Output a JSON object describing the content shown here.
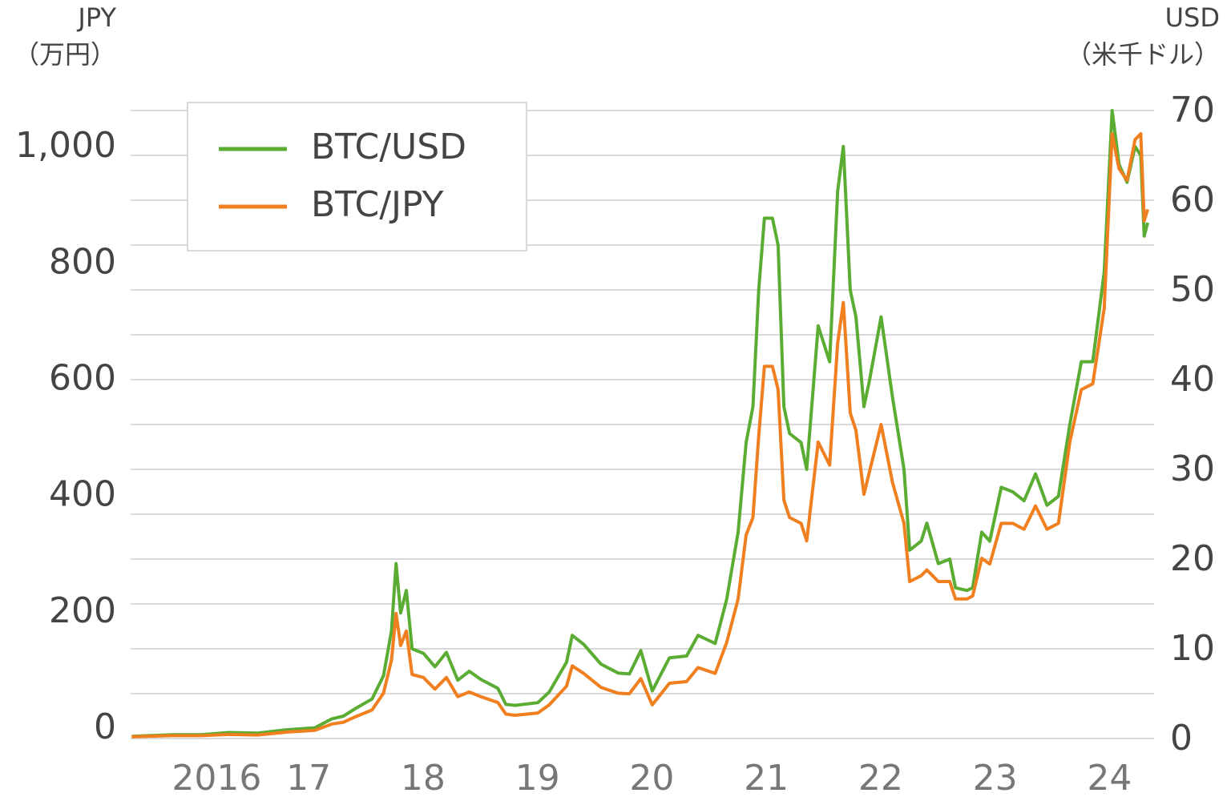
{
  "chart_data": {
    "type": "line",
    "y_label": [
      "JPY",
      "（万円）"
    ],
    "y2_label": [
      "USD",
      "（米千ドル）"
    ],
    "x": [
      2015.65,
      2016.0,
      2016.25,
      2016.5,
      2016.75,
      2017.0,
      2017.25,
      2017.4,
      2017.5,
      2017.6,
      2017.75,
      2017.85,
      2017.92,
      2017.96,
      2018.0,
      2018.05,
      2018.1,
      2018.2,
      2018.3,
      2018.4,
      2018.5,
      2018.6,
      2018.7,
      2018.85,
      2018.92,
      2019.0,
      2019.2,
      2019.3,
      2019.45,
      2019.5,
      2019.6,
      2019.75,
      2019.9,
      2020.0,
      2020.1,
      2020.2,
      2020.35,
      2020.5,
      2020.6,
      2020.75,
      2020.85,
      2020.95,
      2021.02,
      2021.08,
      2021.13,
      2021.18,
      2021.25,
      2021.3,
      2021.35,
      2021.4,
      2021.5,
      2021.55,
      2021.65,
      2021.75,
      2021.82,
      2021.87,
      2021.93,
      2021.98,
      2022.05,
      2022.1,
      2022.2,
      2022.3,
      2022.4,
      2022.45,
      2022.55,
      2022.6,
      2022.7,
      2022.8,
      2022.85,
      2022.95,
      2023.0,
      2023.08,
      2023.15,
      2023.25,
      2023.35,
      2023.45,
      2023.55,
      2023.65,
      2023.75,
      2023.85,
      2023.95,
      2024.05,
      2024.15,
      2024.22,
      2024.28,
      2024.35,
      2024.42,
      2024.47,
      2024.5,
      2024.53
    ],
    "series": [
      {
        "name": "BTC/USD",
        "color": "#5aac33",
        "axis": "y2",
        "values": [
          0.25,
          0.43,
          0.42,
          0.67,
          0.61,
          0.97,
          1.2,
          2.2,
          2.5,
          3.3,
          4.4,
          7.0,
          12,
          19.5,
          14,
          16.5,
          10,
          9.5,
          8,
          9.6,
          6.5,
          7.5,
          6.6,
          5.6,
          3.8,
          3.7,
          4.0,
          5.2,
          8.5,
          11.5,
          10.5,
          8.3,
          7.3,
          7.2,
          9.8,
          5.3,
          9.0,
          9.2,
          11.5,
          10.6,
          15.5,
          23,
          33,
          37,
          50,
          58,
          58,
          55,
          37,
          34,
          33,
          30,
          46,
          42,
          61,
          66,
          50,
          47,
          37,
          40,
          47,
          38,
          30,
          21,
          22,
          24,
          19.5,
          20,
          16.8,
          16.5,
          16.8,
          23,
          22,
          28,
          27.5,
          26.5,
          29.5,
          26,
          27,
          35,
          42,
          42,
          52,
          70,
          64,
          62,
          66,
          65,
          56,
          57.5
        ]
      },
      {
        "name": "BTC/JPY",
        "color": "#f07f1f",
        "axis": "y",
        "values": [
          3,
          5,
          5,
          7,
          6,
          11,
          14,
          25,
          28,
          37,
          49,
          78,
          135,
          215,
          160,
          185,
          110,
          105,
          85,
          105,
          72,
          80,
          72,
          62,
          42,
          40,
          44,
          58,
          90,
          125,
          112,
          88,
          78,
          77,
          103,
          58,
          95,
          98,
          122,
          112,
          165,
          240,
          350,
          380,
          520,
          640,
          640,
          600,
          410,
          380,
          370,
          340,
          510,
          470,
          680,
          750,
          560,
          530,
          420,
          460,
          540,
          440,
          370,
          270,
          280,
          290,
          270,
          270,
          240,
          240,
          245,
          310,
          300,
          370,
          370,
          360,
          400,
          360,
          370,
          510,
          600,
          610,
          740,
          1040,
          980,
          960,
          1030,
          1040,
          890,
          910
        ]
      }
    ],
    "xlim": [
      2015.64,
      2024.53
    ],
    "xticks": [
      {
        "value": 2016,
        "label": "2016"
      },
      {
        "value": 2017,
        "label": "17"
      },
      {
        "value": 2018,
        "label": "18"
      },
      {
        "value": 2019,
        "label": "19"
      },
      {
        "value": 2020,
        "label": "20"
      },
      {
        "value": 2021,
        "label": "21"
      },
      {
        "value": 2022,
        "label": "22"
      },
      {
        "value": 2023,
        "label": "23"
      },
      {
        "value": 2024,
        "label": "24"
      }
    ],
    "ylim": [
      0,
      1080
    ],
    "yticks": [
      0,
      200,
      400,
      600,
      800,
      {
        "value": 1000,
        "label": "1,000"
      }
    ],
    "y2lim": [
      0,
      70
    ],
    "y2ticks": [
      0,
      10,
      20,
      30,
      40,
      50,
      60,
      70
    ],
    "y2grid": [
      0,
      5,
      10,
      15,
      20,
      25,
      30,
      35,
      40,
      45,
      50,
      55,
      60,
      65,
      70
    ],
    "legend": "upper left"
  }
}
